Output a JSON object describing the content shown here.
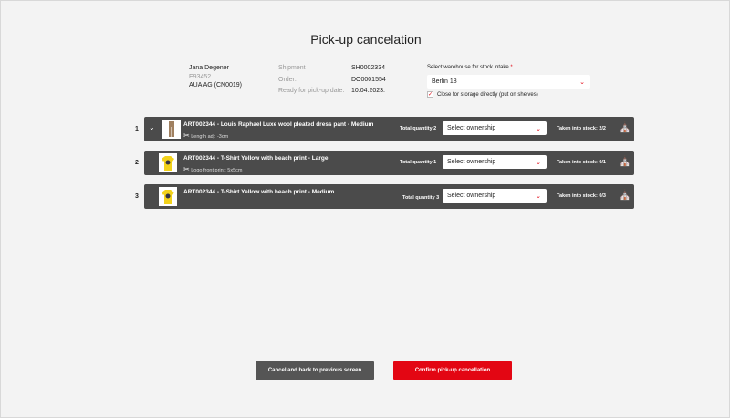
{
  "title": "Pick-up cancelation",
  "customer": {
    "name": "Jana Degener",
    "id": "E93452",
    "company": "AUA AG (CN0019)"
  },
  "details": [
    {
      "label": "Shipment",
      "value": "SH0002334"
    },
    {
      "label": "Order:",
      "value": "DO0001554"
    },
    {
      "label": "Ready for pick-up date:",
      "value": "10.04.2023."
    }
  ],
  "warehouse": {
    "label": "Select warehouse for stock intake",
    "required": "*",
    "value": "Berlin 18",
    "checkbox_label": "Close for storage directly (put on shelves)",
    "checked": true
  },
  "items": [
    {
      "index": "1",
      "name": "ART002344 - Louis Raphael Luxe wool pleated dress pant - Medium",
      "alteration": "Length adj: -3cm",
      "quantity": "Total quantity 2",
      "ownership": "Select ownership",
      "stock": "Taken into stock: 2/2",
      "image": "pants"
    },
    {
      "index": "2",
      "name": "ART002344 - T-Shirt Yellow with beach print - Large",
      "alteration": "Logo front print: 5x5cm",
      "quantity": "Total quantity 1",
      "ownership": "Select ownership",
      "stock": "Taken into stock: 0/1",
      "image": "yellow-tshirt"
    },
    {
      "index": "3",
      "name": "ART002344 - T-Shirt Yellow with beach print - Medium",
      "alteration": "",
      "quantity": "Total quantity 3",
      "ownership": "Select ownership",
      "stock": "Taken into stock: 0/3",
      "image": "yellow-tshirt"
    }
  ],
  "buttons": {
    "cancel": "Cancel and back to previous screen",
    "confirm": "Confirm pick-up cancellation"
  },
  "colors": {
    "accent": "#e30613",
    "row": "#4b4b4b",
    "secondary_button": "#555555"
  }
}
